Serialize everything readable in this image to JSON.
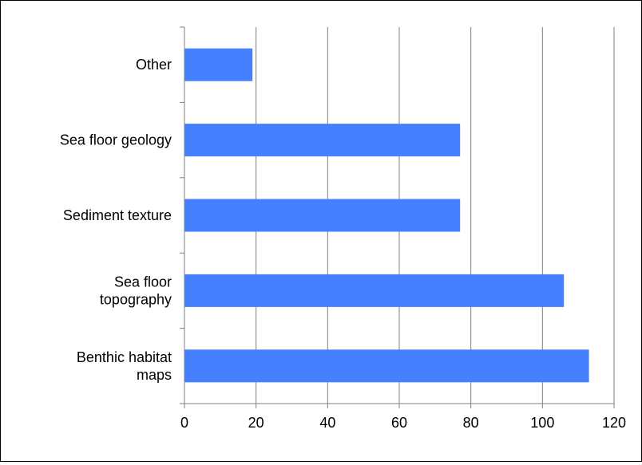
{
  "chart_data": {
    "type": "bar",
    "orientation": "horizontal",
    "title": "",
    "xlabel": "",
    "ylabel": "",
    "categories": [
      [
        "Other"
      ],
      [
        "Sea floor geology"
      ],
      [
        "Sediment texture"
      ],
      [
        "Sea floor",
        "topography"
      ],
      [
        "Benthic habitat",
        "maps"
      ]
    ],
    "values": [
      19,
      77,
      77,
      106,
      113
    ],
    "xlim": [
      0,
      120
    ],
    "xticks": [
      0,
      20,
      40,
      60,
      80,
      100,
      120
    ],
    "grid": "vertical",
    "legend": "none",
    "bar_color": "#4580ff",
    "grid_color": "#808080",
    "axis_color": "#808080"
  }
}
